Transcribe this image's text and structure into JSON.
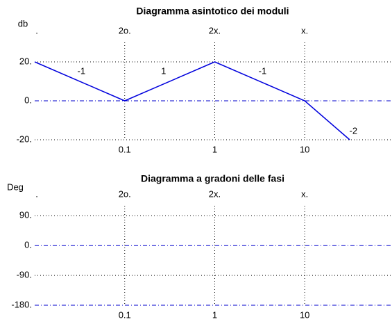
{
  "chart_data": [
    {
      "type": "line",
      "title": "Diagramma asintotico dei moduli",
      "ylabel": "db",
      "xscale": "log",
      "xlim": [
        0.01,
        90
      ],
      "xticks": [
        0.1,
        1,
        10
      ],
      "top_ticks": [
        {
          "value": 0.01,
          "label": "."
        },
        {
          "value": 0.1,
          "label": "2o."
        },
        {
          "value": 1,
          "label": "2x."
        },
        {
          "value": 10,
          "label": "x."
        }
      ],
      "ylim": [
        -20,
        30
      ],
      "yticks": [
        {
          "value": 20,
          "label": "20."
        },
        {
          "value": 0,
          "label": "0."
        },
        {
          "value": -20,
          "label": "-20."
        }
      ],
      "grid": true,
      "reference_lines": [
        0
      ],
      "reference_color": "#0000cc",
      "series": [
        {
          "color": "#0000dd",
          "x": [
            0.01,
            0.1,
            1,
            10,
            31.6
          ],
          "values": [
            20,
            0,
            20,
            0,
            -20
          ]
        }
      ],
      "annotations": [
        {
          "text": "-1",
          "x": 0.033,
          "y": 15
        },
        {
          "text": "1",
          "x": 0.27,
          "y": 15
        },
        {
          "text": "-1",
          "x": 3.4,
          "y": 15
        },
        {
          "text": "-2",
          "x": 34.7,
          "y": -15.7
        }
      ]
    },
    {
      "type": "line",
      "title": "Diagramma a gradoni delle fasi",
      "ylabel": "Deg",
      "xscale": "log",
      "xlim": [
        0.01,
        90
      ],
      "xticks": [
        0.1,
        1,
        10
      ],
      "top_ticks": [
        {
          "value": 0.01,
          "label": "."
        },
        {
          "value": 0.1,
          "label": "2o."
        },
        {
          "value": 1,
          "label": "2x."
        },
        {
          "value": 10,
          "label": "x."
        }
      ],
      "ylim": [
        -180,
        120
      ],
      "yticks": [
        {
          "value": 90,
          "label": "90."
        },
        {
          "value": 0,
          "label": "0."
        },
        {
          "value": -90,
          "label": "-90."
        },
        {
          "value": -180,
          "label": "-180."
        }
      ],
      "grid": true,
      "reference_lines": [
        0,
        -180
      ],
      "reference_color": "#0000cc",
      "series": []
    }
  ]
}
